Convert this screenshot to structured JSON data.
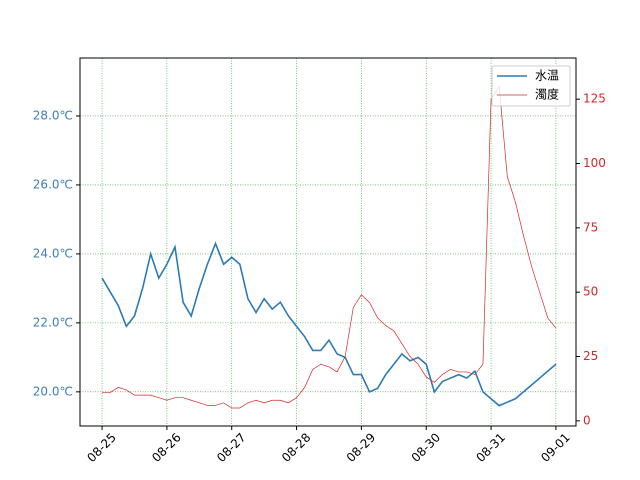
{
  "chart_data": {
    "type": "line",
    "x": [
      0,
      0.125,
      0.25,
      0.375,
      0.5,
      0.625,
      0.75,
      0.875,
      1,
      1.125,
      1.25,
      1.375,
      1.5,
      1.625,
      1.75,
      1.875,
      2,
      2.125,
      2.25,
      2.375,
      2.5,
      2.625,
      2.75,
      2.875,
      3,
      3.125,
      3.25,
      3.375,
      3.5,
      3.625,
      3.75,
      3.875,
      4,
      4.125,
      4.25,
      4.375,
      4.5,
      4.625,
      4.75,
      4.875,
      5,
      5.125,
      5.25,
      5.375,
      5.5,
      5.625,
      5.75,
      5.875,
      6,
      6.125,
      6.25,
      6.375,
      6.5,
      6.625,
      6.75,
      6.875,
      7
    ],
    "series": [
      {
        "name": "水温",
        "color": "#2e7ab6",
        "values": [
          23.3,
          22.9,
          22.5,
          21.9,
          22.2,
          23.0,
          24.0,
          23.3,
          23.7,
          24.2,
          22.6,
          22.2,
          23.0,
          23.7,
          24.3,
          23.7,
          23.9,
          23.7,
          22.7,
          22.3,
          22.7,
          22.4,
          22.6,
          22.2,
          21.9,
          21.6,
          21.2,
          21.2,
          21.5,
          21.1,
          21.0,
          20.5,
          20.5,
          20.0,
          20.1,
          20.5,
          20.8,
          21.1,
          20.9,
          21.0,
          20.8,
          20.0,
          20.3,
          20.4,
          20.5,
          20.4,
          20.6,
          20.0,
          19.8,
          19.6,
          19.7,
          19.8,
          20.0,
          20.2,
          20.4,
          20.6,
          20.8
        ]
      },
      {
        "name": "濁度",
        "color": "#d62728",
        "axis": "y2",
        "values": [
          11,
          11,
          13,
          12,
          10,
          10,
          10,
          9,
          8,
          9,
          9,
          8,
          7,
          6,
          6,
          7,
          5,
          5,
          7,
          8,
          7,
          8,
          8,
          7,
          9,
          13,
          20,
          22,
          21,
          19,
          25,
          44,
          49,
          46,
          40,
          37,
          35,
          30,
          25,
          22,
          17,
          15,
          18,
          20,
          19,
          19,
          18,
          22,
          125,
          130,
          95,
          85,
          72,
          60,
          50,
          40,
          36
        ]
      }
    ],
    "xlim": [
      -0.34,
      7.31
    ],
    "xticks": [
      {
        "value": 0,
        "label": "08-25"
      },
      {
        "value": 1,
        "label": "08-26"
      },
      {
        "value": 2,
        "label": "08-27"
      },
      {
        "value": 3,
        "label": "08-28"
      },
      {
        "value": 4,
        "label": "08-29"
      },
      {
        "value": 5,
        "label": "08-30"
      },
      {
        "value": 6,
        "label": "08-31"
      },
      {
        "value": 7,
        "label": "09-01"
      }
    ],
    "ylim": [
      19.01,
      29.68
    ],
    "yticks": [
      {
        "value": 20,
        "label": "20.0℃"
      },
      {
        "value": 22,
        "label": "22.0℃"
      },
      {
        "value": 24,
        "label": "24.0℃"
      },
      {
        "value": 26,
        "label": "26.0℃"
      },
      {
        "value": 28,
        "label": "28.0℃"
      }
    ],
    "y2lim": [
      -2,
      141
    ],
    "y2ticks": [
      0,
      25,
      50,
      75,
      100,
      125
    ],
    "grid": true,
    "grid_color": "#2a9d2a",
    "legend": "upper right",
    "ytick_color": "#3f7fb5",
    "y2tick_color": "#d62728"
  }
}
